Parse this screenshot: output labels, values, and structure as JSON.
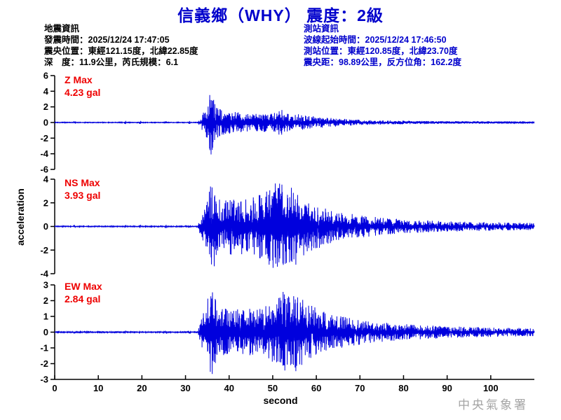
{
  "header": {
    "title": "信義鄉（WHY） 震度：2級"
  },
  "info_left": {
    "heading": "地震資訊",
    "lines": [
      "發震時間：2025/12/24 17:47:05",
      "震央位置：東經121.15度，北緯22.85度",
      "深　度：11.9公里，芮氏規模：6.1"
    ]
  },
  "info_right": {
    "heading": "測站資訊",
    "lines": [
      "波線起始時間：2025/12/24 17:46:50",
      "測站位置：東經120.85度，北緯23.70度",
      "震央距：98.89公里，反方位角：162.2度"
    ]
  },
  "footer": {
    "agency": "中央氣象署"
  },
  "colors": {
    "accent_blue": "#0000CC",
    "waveform_blue": "#0000DD",
    "label_red": "#EE0000",
    "axis_black": "#000000",
    "agency_gray": "#A5A5A5"
  },
  "chart_data": {
    "type": "line",
    "title": "信義鄉（WHY） 震度：2級",
    "xlabel": "second",
    "ylabel": "acceleration",
    "xlim": [
      0,
      110
    ],
    "xticks": [
      0,
      10,
      20,
      30,
      40,
      50,
      60,
      70,
      80,
      90,
      100
    ],
    "grid": false,
    "event_onset_s": 33,
    "pre_event_blip_times": [
      4.6,
      16.2,
      19.5,
      25.5,
      30.8
    ],
    "traces": [
      {
        "name": "Z",
        "max_label": "Z Max",
        "max_value_label": "4.23 gal",
        "max_gal": 4.23,
        "ylim": [
          -6,
          6
        ],
        "yticks": [
          6,
          4,
          2,
          0,
          -2,
          -4,
          -6
        ],
        "envelope": [
          [
            0,
            0.04
          ],
          [
            32.8,
            0.04
          ],
          [
            33.2,
            0.5
          ],
          [
            34.5,
            1.6
          ],
          [
            35.3,
            2.8
          ],
          [
            35.8,
            4.23
          ],
          [
            36.6,
            2.6
          ],
          [
            37.5,
            1.9
          ],
          [
            39,
            1.5
          ],
          [
            42,
            1.35
          ],
          [
            45,
            1.15
          ],
          [
            48,
            1.25
          ],
          [
            50,
            1.1
          ],
          [
            52.5,
            2.0
          ],
          [
            53.5,
            1.1
          ],
          [
            56,
            1.05
          ],
          [
            58,
            0.9
          ],
          [
            61,
            0.7
          ],
          [
            64,
            0.55
          ],
          [
            68,
            0.4
          ],
          [
            72,
            0.3
          ],
          [
            78,
            0.24
          ],
          [
            85,
            0.2
          ],
          [
            95,
            0.16
          ],
          [
            110,
            0.13
          ]
        ]
      },
      {
        "name": "NS",
        "max_label": "NS Max",
        "max_value_label": "3.93 gal",
        "max_gal": 3.93,
        "ylim": [
          -4,
          4
        ],
        "yticks": [
          4,
          2,
          0,
          -2,
          -4
        ],
        "envelope": [
          [
            0,
            0.035
          ],
          [
            32.8,
            0.035
          ],
          [
            33.5,
            0.9
          ],
          [
            35,
            2.6
          ],
          [
            36.2,
            3.93
          ],
          [
            37.2,
            2.6
          ],
          [
            38.5,
            2.1
          ],
          [
            40,
            2.45
          ],
          [
            42,
            2.2
          ],
          [
            44,
            2.6
          ],
          [
            46,
            2.45
          ],
          [
            48,
            3.0
          ],
          [
            50,
            3.55
          ],
          [
            51.5,
            3.93
          ],
          [
            53,
            3.1
          ],
          [
            54.8,
            3.85
          ],
          [
            56.5,
            2.9
          ],
          [
            58,
            2.3
          ],
          [
            60,
            1.9
          ],
          [
            63,
            1.5
          ],
          [
            66,
            1.2
          ],
          [
            70,
            0.95
          ],
          [
            75,
            0.75
          ],
          [
            80,
            0.6
          ],
          [
            86,
            0.5
          ],
          [
            93,
            0.42
          ],
          [
            100,
            0.36
          ],
          [
            110,
            0.3
          ]
        ]
      },
      {
        "name": "EW",
        "max_label": "EW Max",
        "max_value_label": "2.84 gal",
        "max_gal": 2.84,
        "ylim": [
          -3,
          3
        ],
        "yticks": [
          3,
          2,
          1,
          0,
          -1,
          -2,
          -3
        ],
        "envelope": [
          [
            0,
            0.03
          ],
          [
            32.8,
            0.03
          ],
          [
            33.5,
            0.8
          ],
          [
            35,
            2.1
          ],
          [
            36,
            2.84
          ],
          [
            37.3,
            1.9
          ],
          [
            39,
            1.5
          ],
          [
            41,
            1.55
          ],
          [
            43,
            1.4
          ],
          [
            45,
            1.55
          ],
          [
            47,
            1.5
          ],
          [
            49,
            1.9
          ],
          [
            51,
            2.3
          ],
          [
            52.5,
            2.6
          ],
          [
            54,
            2.2
          ],
          [
            55.8,
            2.84
          ],
          [
            57.5,
            2.1
          ],
          [
            59,
            1.7
          ],
          [
            61,
            1.4
          ],
          [
            64,
            1.1
          ],
          [
            67,
            0.95
          ],
          [
            70,
            0.8
          ],
          [
            74,
            0.65
          ],
          [
            78,
            0.55
          ],
          [
            84,
            0.45
          ],
          [
            92,
            0.36
          ],
          [
            100,
            0.3
          ],
          [
            110,
            0.25
          ]
        ]
      }
    ]
  }
}
